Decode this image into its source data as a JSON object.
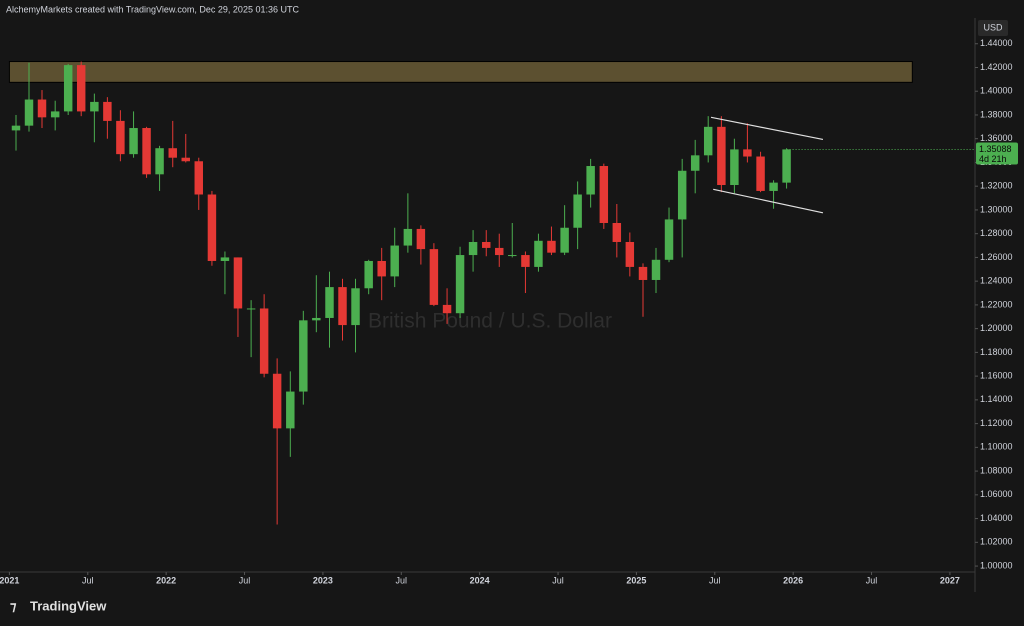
{
  "header": "AlchemyMarkets created with TradingView.com, Dec 29, 2025 01:36 UTC",
  "brand": "TradingView",
  "chart_data": {
    "type": "candlestick",
    "title": "British Pound / U.S. Dollar",
    "currency": "USD",
    "up_color": "#4caf50",
    "down_color": "#e53935",
    "x": [
      2021.042,
      2021.125,
      2021.208,
      2021.292,
      2021.375,
      2021.458,
      2021.542,
      2021.625,
      2021.708,
      2021.792,
      2021.875,
      2021.958,
      2022.042,
      2022.125,
      2022.208,
      2022.292,
      2022.375,
      2022.458,
      2022.542,
      2022.625,
      2022.708,
      2022.792,
      2022.875,
      2022.958,
      2023.042,
      2023.125,
      2023.208,
      2023.292,
      2023.375,
      2023.458,
      2023.542,
      2023.625,
      2023.708,
      2023.792,
      2023.875,
      2023.958,
      2024.042,
      2024.125,
      2024.208,
      2024.292,
      2024.375,
      2024.458,
      2024.542,
      2024.625,
      2024.708,
      2024.792,
      2024.875,
      2024.958,
      2025.042,
      2025.125,
      2025.208,
      2025.292,
      2025.375,
      2025.458,
      2025.542,
      2025.625,
      2025.708,
      2025.792,
      2025.875,
      2025.958
    ],
    "open": [
      1.367,
      1.371,
      1.393,
      1.378,
      1.383,
      1.422,
      1.383,
      1.391,
      1.375,
      1.347,
      1.369,
      1.33,
      1.352,
      1.344,
      1.341,
      1.313,
      1.257,
      1.26,
      1.217,
      1.217,
      1.162,
      1.116,
      1.147,
      1.207,
      1.209,
      1.235,
      1.203,
      1.234,
      1.257,
      1.244,
      1.27,
      1.284,
      1.267,
      1.22,
      1.213,
      1.262,
      1.273,
      1.268,
      1.262,
      1.262,
      1.252,
      1.274,
      1.264,
      1.285,
      1.313,
      1.337,
      1.289,
      1.273,
      1.252,
      1.241,
      1.258,
      1.292,
      1.333,
      1.346,
      1.37,
      1.321,
      1.351,
      1.345,
      1.316,
      1.323
    ],
    "high": [
      1.38,
      1.424,
      1.401,
      1.392,
      1.423,
      1.425,
      1.398,
      1.395,
      1.384,
      1.383,
      1.37,
      1.354,
      1.375,
      1.364,
      1.344,
      1.316,
      1.265,
      1.26,
      1.224,
      1.229,
      1.175,
      1.164,
      1.215,
      1.245,
      1.248,
      1.242,
      1.242,
      1.258,
      1.268,
      1.285,
      1.314,
      1.287,
      1.272,
      1.234,
      1.269,
      1.283,
      1.283,
      1.28,
      1.289,
      1.265,
      1.28,
      1.286,
      1.304,
      1.324,
      1.343,
      1.339,
      1.305,
      1.281,
      1.255,
      1.268,
      1.302,
      1.343,
      1.359,
      1.379,
      1.379,
      1.36,
      1.373,
      1.349,
      1.325,
      1.352
    ],
    "low": [
      1.35,
      1.366,
      1.369,
      1.367,
      1.38,
      1.379,
      1.357,
      1.36,
      1.341,
      1.344,
      1.327,
      1.316,
      1.336,
      1.34,
      1.3,
      1.253,
      1.229,
      1.193,
      1.176,
      1.159,
      1.035,
      1.092,
      1.136,
      1.197,
      1.184,
      1.19,
      1.18,
      1.229,
      1.224,
      1.235,
      1.264,
      1.254,
      1.219,
      1.204,
      1.209,
      1.248,
      1.261,
      1.252,
      1.26,
      1.23,
      1.248,
      1.262,
      1.262,
      1.267,
      1.302,
      1.284,
      1.26,
      1.244,
      1.21,
      1.23,
      1.256,
      1.26,
      1.314,
      1.34,
      1.315,
      1.314,
      1.34,
      1.315,
      1.301,
      1.318
    ],
    "close": [
      1.371,
      1.393,
      1.378,
      1.383,
      1.422,
      1.383,
      1.391,
      1.375,
      1.347,
      1.369,
      1.33,
      1.352,
      1.344,
      1.341,
      1.313,
      1.257,
      1.26,
      1.217,
      1.217,
      1.162,
      1.116,
      1.147,
      1.207,
      1.209,
      1.235,
      1.203,
      1.234,
      1.257,
      1.244,
      1.27,
      1.284,
      1.267,
      1.22,
      1.213,
      1.262,
      1.273,
      1.268,
      1.262,
      1.262,
      1.252,
      1.274,
      1.264,
      1.285,
      1.313,
      1.337,
      1.289,
      1.273,
      1.252,
      1.241,
      1.258,
      1.292,
      1.333,
      1.346,
      1.37,
      1.321,
      1.351,
      1.345,
      1.316,
      1.323,
      1.351
    ],
    "xlim": [
      2020.94,
      2027.16
    ],
    "ylim": [
      0.995,
      1.46
    ],
    "xticks": [
      2021,
      {
        "value": 2021.5,
        "label": "Jul"
      },
      2022,
      {
        "value": 2022.5,
        "label": "Jul"
      },
      2023,
      {
        "value": 2023.5,
        "label": "Jul"
      },
      2024,
      {
        "value": 2024.5,
        "label": "Jul"
      },
      2025,
      {
        "value": 2025.5,
        "label": "Jul"
      },
      2026,
      {
        "value": 2026.5,
        "label": "Jul"
      },
      2027
    ],
    "yticks": [
      {
        "value": 1.0,
        "label": "1.00000"
      },
      {
        "value": 1.02,
        "label": "1.02000"
      },
      {
        "value": 1.04,
        "label": "1.04000"
      },
      {
        "value": 1.06,
        "label": "1.06000"
      },
      {
        "value": 1.08,
        "label": "1.08000"
      },
      {
        "value": 1.1,
        "label": "1.10000"
      },
      {
        "value": 1.12,
        "label": "1.12000"
      },
      {
        "value": 1.14,
        "label": "1.14000"
      },
      {
        "value": 1.16,
        "label": "1.16000"
      },
      {
        "value": 1.18,
        "label": "1.18000"
      },
      {
        "value": 1.2,
        "label": "1.20000"
      },
      {
        "value": 1.22,
        "label": "1.22000"
      },
      {
        "value": 1.24,
        "label": "1.24000"
      },
      {
        "value": 1.26,
        "label": "1.26000"
      },
      {
        "value": 1.28,
        "label": "1.28000"
      },
      {
        "value": 1.3,
        "label": "1.30000"
      },
      {
        "value": 1.32,
        "label": "1.32000"
      },
      {
        "value": 1.34,
        "label": "1.34000"
      },
      {
        "value": 1.36,
        "label": "1.36000"
      },
      {
        "value": 1.38,
        "label": "1.38000"
      },
      {
        "value": 1.4,
        "label": "1.40000"
      },
      {
        "value": 1.42,
        "label": "1.42000"
      },
      {
        "value": 1.44,
        "label": "1.44000"
      }
    ],
    "last_price": {
      "value": 1.35088,
      "label": "1.35088"
    },
    "countdown": "4d 21h",
    "zone": {
      "x": [
        2021.0,
        2026.76
      ],
      "y": [
        1.4075,
        1.425
      ],
      "color": "#5c5030"
    },
    "trend_lines": [
      {
        "x": [
          2025.476,
          2026.19
        ],
        "y": [
          1.378,
          1.3594
        ]
      },
      {
        "x": [
          2025.49,
          2026.19
        ],
        "y": [
          1.3174,
          1.2976
        ]
      }
    ]
  }
}
